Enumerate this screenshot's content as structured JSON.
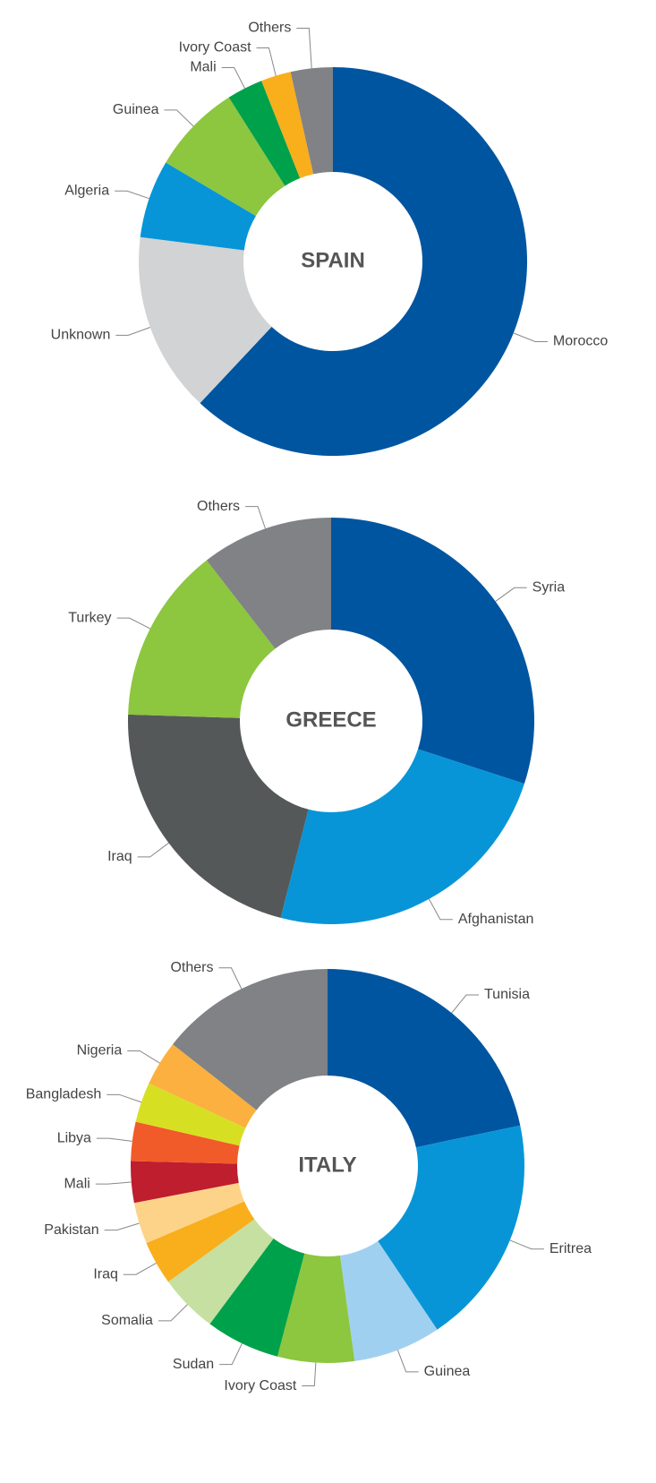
{
  "chart_data": [
    {
      "type": "donut",
      "title": "SPAIN",
      "categories": [
        "Morocco",
        "Unknown",
        "Algeria",
        "Guinea",
        "Mali",
        "Ivory Coast",
        "Others"
      ],
      "values": [
        62,
        15,
        6.5,
        7.5,
        3,
        2.5,
        3.5
      ],
      "colors": [
        "#0055a0",
        "#d1d3d4",
        "#0795d8",
        "#8dc63f",
        "#00a14b",
        "#f9ae1c",
        "#808285"
      ]
    },
    {
      "type": "donut",
      "title": "GREECE",
      "categories": [
        "Syria",
        "Afghanistan",
        "Iraq",
        "Turkey",
        "Others"
      ],
      "values": [
        30,
        24,
        21.5,
        14,
        10.5
      ],
      "colors": [
        "#0055a0",
        "#0795d8",
        "#555859",
        "#8dc63f",
        "#808285"
      ]
    },
    {
      "type": "donut",
      "title": "ITALY",
      "categories": [
        "Tunisia",
        "Eritrea",
        "Guinea",
        "Ivory Coast",
        "Sudan",
        "Somalia",
        "Iraq",
        "Pakistan",
        "Mali",
        "Libya",
        "Bangladesh",
        "Nigeria",
        "Others"
      ],
      "values": [
        21.7,
        18.9,
        7.2,
        6.3,
        6.1,
        4.8,
        3.6,
        3.4,
        3.4,
        3.2,
        3.3,
        3.7,
        14.4
      ],
      "colors": [
        "#0055a0",
        "#0795d8",
        "#a0d0f0",
        "#8dc63f",
        "#00a14b",
        "#c5e0a0",
        "#f9ae1c",
        "#fdd38a",
        "#be1e2d",
        "#f15a29",
        "#d7df23",
        "#fbb040",
        "#808285"
      ]
    }
  ]
}
